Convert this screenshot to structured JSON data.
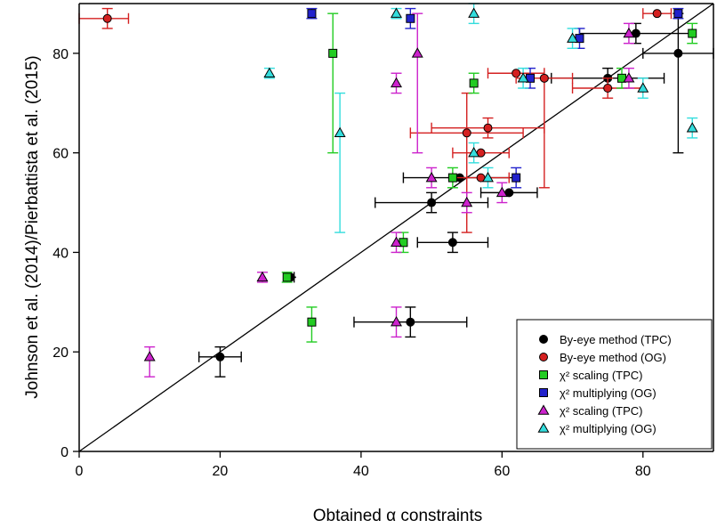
{
  "chart_data": {
    "type": "scatter",
    "xlabel": "Obtained α constraints",
    "ylabel": "Johnson et al. (2014)/Pierbattista et al. (2015)",
    "xlim": [
      0,
      90
    ],
    "ylim": [
      0,
      90
    ],
    "xticks": [
      "0",
      "20",
      "40",
      "60",
      "80"
    ],
    "yticks": [
      "0",
      "20",
      "40",
      "60",
      "80"
    ],
    "grid": false,
    "legend_position": "bottom-right",
    "reference_line": {
      "x": [
        0,
        90
      ],
      "y": [
        0,
        90
      ]
    },
    "series": [
      {
        "name": "By-eye method (TPC)",
        "marker": "circle",
        "color": "#000000",
        "points": [
          {
            "x": 20,
            "y": 19,
            "xerr": [
              3,
              3
            ],
            "yerr": [
              4,
              2
            ]
          },
          {
            "x": 30,
            "y": 35,
            "xerr": [
              0.5,
              0.5
            ],
            "yerr": [
              0,
              0
            ]
          },
          {
            "x": 47,
            "y": 26,
            "xerr": [
              8,
              8
            ],
            "yerr": [
              3,
              3
            ]
          },
          {
            "x": 53,
            "y": 42,
            "xerr": [
              5,
              5
            ],
            "yerr": [
              2,
              2
            ]
          },
          {
            "x": 50,
            "y": 50,
            "xerr": [
              8,
              8
            ],
            "yerr": [
              2,
              2
            ]
          },
          {
            "x": 61,
            "y": 52,
            "xerr": [
              4,
              4
            ],
            "yerr": [
              0,
              0
            ]
          },
          {
            "x": 54,
            "y": 55,
            "xerr": [
              8,
              8
            ],
            "yerr": [
              0,
              0
            ]
          },
          {
            "x": 75,
            "y": 75,
            "xerr": [
              8,
              8
            ],
            "yerr": [
              2,
              2
            ]
          },
          {
            "x": 79,
            "y": 84,
            "xerr": [
              8,
              8
            ],
            "yerr": [
              2,
              2
            ]
          },
          {
            "x": 85,
            "y": 80,
            "xerr": [
              5,
              5
            ],
            "yerr": [
              20,
              8
            ]
          }
        ]
      },
      {
        "name": "By-eye method (OG)",
        "marker": "circle",
        "color": "#d42020",
        "points": [
          {
            "x": 4,
            "y": 87,
            "xerr": [
              4,
              3
            ],
            "yerr": [
              2,
              2
            ]
          },
          {
            "x": 55,
            "y": 64,
            "xerr": [
              8,
              8
            ],
            "yerr": [
              20,
              8
            ]
          },
          {
            "x": 57,
            "y": 60,
            "xerr": [
              4,
              4
            ],
            "yerr": [
              0,
              0
            ]
          },
          {
            "x": 58,
            "y": 65,
            "xerr": [
              8,
              8
            ],
            "yerr": [
              2,
              2
            ]
          },
          {
            "x": 57,
            "y": 55,
            "xerr": [
              4,
              4
            ],
            "yerr": [
              0,
              0
            ]
          },
          {
            "x": 62,
            "y": 76,
            "xerr": [
              4,
              4
            ],
            "yerr": [
              0,
              0
            ]
          },
          {
            "x": 66,
            "y": 75,
            "xerr": [
              4,
              4
            ],
            "yerr": [
              22,
              0
            ]
          },
          {
            "x": 75,
            "y": 73,
            "xerr": [
              5,
              5
            ],
            "yerr": [
              2,
              2
            ]
          },
          {
            "x": 82,
            "y": 88,
            "xerr": [
              2,
              2
            ],
            "yerr": [
              0,
              0
            ]
          }
        ]
      },
      {
        "name": "χ² scaling (TPC)",
        "marker": "square",
        "color": "#22cc22",
        "points": [
          {
            "x": 29.5,
            "y": 35,
            "xerr": [
              0,
              0
            ],
            "yerr": [
              1,
              1
            ]
          },
          {
            "x": 33,
            "y": 26,
            "xerr": [
              0,
              0
            ],
            "yerr": [
              4,
              3
            ]
          },
          {
            "x": 36,
            "y": 80,
            "xerr": [
              0,
              0
            ],
            "yerr": [
              20,
              8
            ]
          },
          {
            "x": 46,
            "y": 42,
            "xerr": [
              0,
              0
            ],
            "yerr": [
              2,
              2
            ]
          },
          {
            "x": 53,
            "y": 55,
            "xerr": [
              0,
              0
            ],
            "yerr": [
              2,
              2
            ]
          },
          {
            "x": 56,
            "y": 74,
            "xerr": [
              0,
              0
            ],
            "yerr": [
              2,
              2
            ]
          },
          {
            "x": 77,
            "y": 75,
            "xerr": [
              0,
              0
            ],
            "yerr": [
              2,
              2
            ]
          },
          {
            "x": 87,
            "y": 84,
            "xerr": [
              0,
              0
            ],
            "yerr": [
              2,
              2
            ]
          }
        ]
      },
      {
        "name": "χ² multiplying (OG)",
        "marker": "square",
        "color": "#2222cc",
        "points": [
          {
            "x": 33,
            "y": 88,
            "xerr": [
              0,
              0
            ],
            "yerr": [
              1,
              1
            ]
          },
          {
            "x": 47,
            "y": 87,
            "xerr": [
              0,
              0
            ],
            "yerr": [
              2,
              2
            ]
          },
          {
            "x": 62,
            "y": 55,
            "xerr": [
              0,
              0
            ],
            "yerr": [
              2,
              2
            ]
          },
          {
            "x": 64,
            "y": 75,
            "xerr": [
              0,
              0
            ],
            "yerr": [
              2,
              2
            ]
          },
          {
            "x": 71,
            "y": 83,
            "xerr": [
              0,
              0
            ],
            "yerr": [
              2,
              2
            ]
          },
          {
            "x": 85,
            "y": 88,
            "xerr": [
              0,
              0
            ],
            "yerr": [
              1,
              1
            ]
          }
        ]
      },
      {
        "name": "χ² scaling (TPC)",
        "marker": "triangle",
        "color": "#cc22cc",
        "points": [
          {
            "x": 10,
            "y": 19,
            "xerr": [
              0,
              0
            ],
            "yerr": [
              4,
              2
            ]
          },
          {
            "x": 26,
            "y": 35,
            "xerr": [
              0,
              0
            ],
            "yerr": [
              1,
              1
            ]
          },
          {
            "x": 45,
            "y": 26,
            "xerr": [
              0,
              0
            ],
            "yerr": [
              3,
              3
            ]
          },
          {
            "x": 45,
            "y": 42,
            "xerr": [
              0,
              0
            ],
            "yerr": [
              2,
              2
            ]
          },
          {
            "x": 45,
            "y": 74,
            "xerr": [
              0,
              0
            ],
            "yerr": [
              2,
              2
            ]
          },
          {
            "x": 48,
            "y": 80,
            "xerr": [
              0,
              0
            ],
            "yerr": [
              20,
              8
            ]
          },
          {
            "x": 50,
            "y": 55,
            "xerr": [
              0,
              0
            ],
            "yerr": [
              2,
              2
            ]
          },
          {
            "x": 55,
            "y": 50,
            "xerr": [
              0,
              0
            ],
            "yerr": [
              2,
              2
            ]
          },
          {
            "x": 60,
            "y": 52,
            "xerr": [
              0,
              0
            ],
            "yerr": [
              2,
              2
            ]
          },
          {
            "x": 78,
            "y": 84,
            "xerr": [
              0,
              0
            ],
            "yerr": [
              2,
              2
            ]
          },
          {
            "x": 78,
            "y": 75,
            "xerr": [
              0,
              0
            ],
            "yerr": [
              2,
              2
            ]
          }
        ]
      },
      {
        "name": "χ² multiplying (OG)",
        "marker": "triangle",
        "color": "#33dddd",
        "points": [
          {
            "x": 27,
            "y": 76,
            "xerr": [
              0,
              0
            ],
            "yerr": [
              1,
              1
            ]
          },
          {
            "x": 37,
            "y": 64,
            "xerr": [
              0,
              0
            ],
            "yerr": [
              20,
              8
            ]
          },
          {
            "x": 45,
            "y": 88,
            "xerr": [
              0,
              0
            ],
            "yerr": [
              1,
              1
            ]
          },
          {
            "x": 56,
            "y": 88,
            "xerr": [
              0,
              0
            ],
            "yerr": [
              2,
              2
            ]
          },
          {
            "x": 56,
            "y": 60,
            "xerr": [
              0,
              0
            ],
            "yerr": [
              2,
              2
            ]
          },
          {
            "x": 58,
            "y": 55,
            "xerr": [
              0,
              0
            ],
            "yerr": [
              2,
              2
            ]
          },
          {
            "x": 63,
            "y": 75,
            "xerr": [
              0,
              0
            ],
            "yerr": [
              2,
              2
            ]
          },
          {
            "x": 70,
            "y": 83,
            "xerr": [
              0,
              0
            ],
            "yerr": [
              2,
              2
            ]
          },
          {
            "x": 80,
            "y": 73,
            "xerr": [
              0,
              0
            ],
            "yerr": [
              2,
              2
            ]
          },
          {
            "x": 87,
            "y": 65,
            "xerr": [
              0,
              0
            ],
            "yerr": [
              2,
              2
            ]
          }
        ]
      }
    ]
  }
}
